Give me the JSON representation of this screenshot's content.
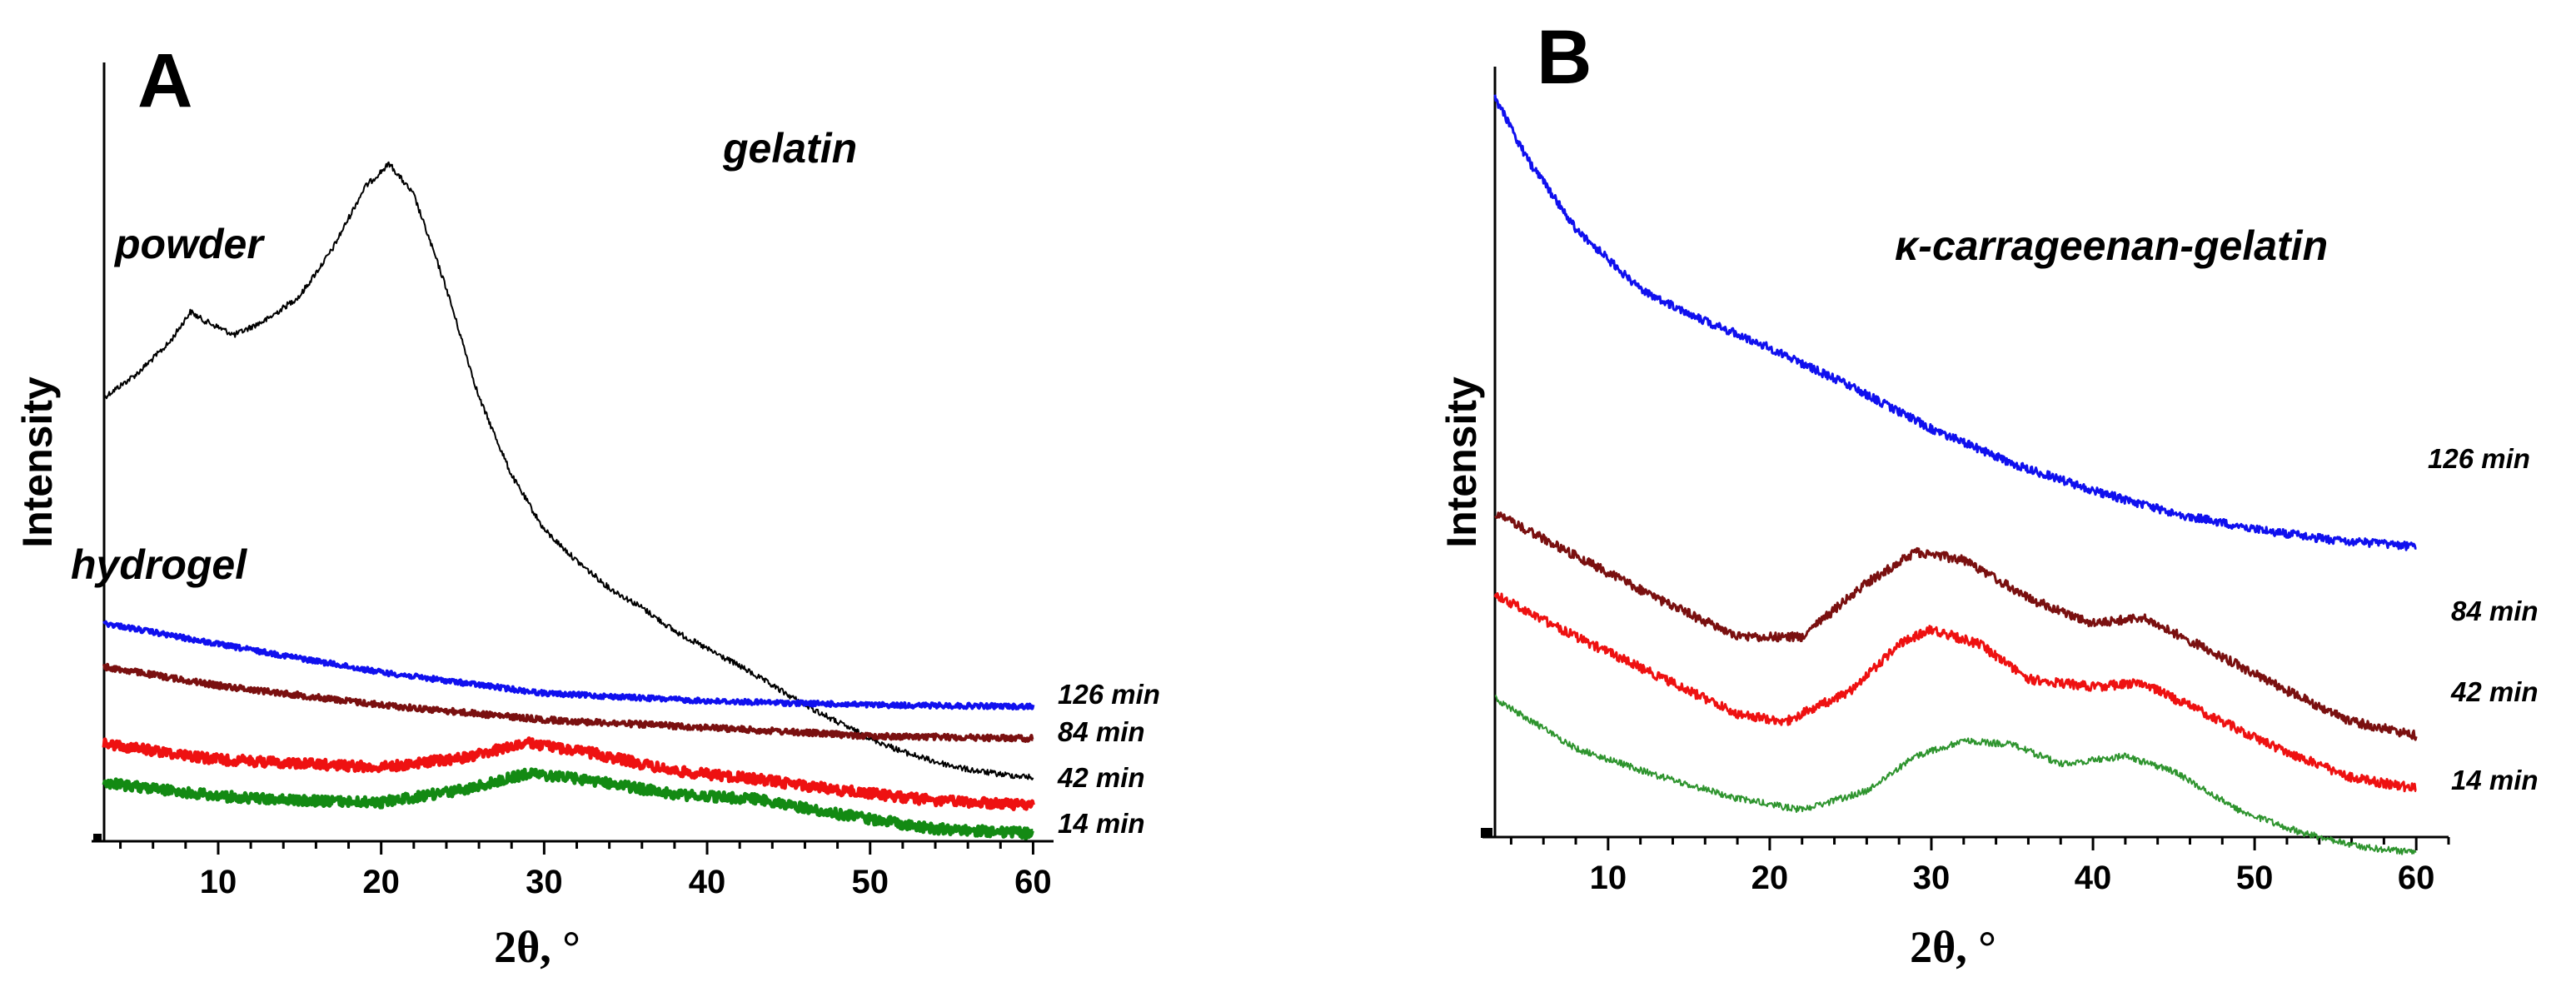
{
  "chart_data": [
    {
      "panel": "A",
      "type": "line",
      "title": "gelatin",
      "xlabel": "2θ, °",
      "ylabel": "Intensity",
      "xlim": [
        3,
        61
      ],
      "ylim": [
        0,
        100
      ],
      "xticks": [
        10,
        20,
        30,
        40,
        50,
        60
      ],
      "annotations": [
        "powder",
        "hydrogel"
      ],
      "series": [
        {
          "name": "powder",
          "label": "",
          "color": "#000000",
          "x": [
            3,
            5,
            7,
            8.3,
            9,
            11,
            13,
            15,
            17,
            19,
            20.5,
            22,
            24,
            26,
            28,
            30,
            32,
            34,
            36,
            38,
            40,
            42,
            44,
            46,
            48,
            50,
            52,
            54,
            56,
            58,
            60
          ],
          "y": [
            57,
            60,
            64,
            68,
            67,
            65,
            67,
            70,
            76,
            84,
            87,
            83,
            71,
            57,
            47,
            40,
            36,
            32.5,
            30,
            27,
            24.7,
            22.5,
            20,
            17.5,
            15.3,
            13.2,
            11.5,
            10.2,
            9.2,
            8.6,
            8.2
          ]
        },
        {
          "name": "126 min",
          "label": "126 min",
          "color": "#1010ee",
          "x": [
            3,
            10,
            20,
            30,
            40,
            50,
            60
          ],
          "y": [
            28,
            25.3,
            21.7,
            19,
            18,
            17.5,
            17.3
          ]
        },
        {
          "name": "84 min",
          "label": "84 min",
          "color": "#7a1010",
          "x": [
            3,
            10,
            20,
            30,
            40,
            50,
            60
          ],
          "y": [
            22.4,
            20,
            17.5,
            15.6,
            14.6,
            13.5,
            13.2
          ]
        },
        {
          "name": "42 min",
          "label": "42 min",
          "color": "#ee1111",
          "x": [
            3,
            10,
            15,
            20,
            25,
            29,
            33,
            38,
            43,
            48,
            54,
            60
          ],
          "y": [
            12.5,
            10.5,
            10,
            9.5,
            10.7,
            12.6,
            11.3,
            9,
            8,
            6.6,
            5.2,
            4.6
          ]
        },
        {
          "name": "14 min",
          "label": "14 min",
          "color": "#138a13",
          "x": [
            3,
            10,
            15,
            20,
            25,
            29,
            33,
            38,
            43,
            48,
            54,
            60
          ],
          "y": [
            7.5,
            5.8,
            5.2,
            5,
            6.6,
            8.7,
            7.8,
            6,
            5.4,
            3.5,
            1.6,
            1
          ]
        }
      ]
    },
    {
      "panel": "B",
      "type": "line",
      "title": "κ-carrageenan-gelatin",
      "xlabel": "2θ, °",
      "ylabel": "Intensity",
      "xlim": [
        3,
        62
      ],
      "ylim": [
        0,
        100
      ],
      "xticks": [
        10,
        20,
        30,
        40,
        50,
        60
      ],
      "annotations": [],
      "series": [
        {
          "name": "126 min",
          "label": "126 min",
          "color": "#1010ee",
          "x": [
            3,
            5,
            8,
            12,
            16,
            20,
            25,
            30,
            35,
            40,
            45,
            50,
            55,
            60
          ],
          "y": [
            96,
            88,
            79,
            71,
            67,
            63.5,
            58.5,
            53,
            48.5,
            45,
            42,
            40,
            38.5,
            37.7
          ]
        },
        {
          "name": "84 min",
          "label": "84 min",
          "color": "#7a1010",
          "x": [
            3,
            8,
            13,
            18,
            22,
            26,
            29,
            32,
            36,
            40,
            43,
            47,
            52,
            56,
            60
          ],
          "y": [
            42,
            36.5,
            31,
            26,
            26,
            33,
            37,
            36,
            31,
            27.7,
            28.5,
            24.5,
            19,
            15,
            13.2
          ]
        },
        {
          "name": "42 min",
          "label": "42 min",
          "color": "#ee1111",
          "x": [
            3,
            8,
            13,
            18,
            21,
            25,
            28,
            30,
            33,
            36,
            40,
            43,
            47,
            52,
            56,
            60
          ],
          "y": [
            31.5,
            26,
            21,
            16,
            15,
            19,
            25,
            27,
            25,
            20.5,
            19.5,
            20,
            16,
            11,
            7.7,
            6.3
          ]
        },
        {
          "name": "14 min",
          "label": "14 min",
          "color": "#2e942e",
          "x": [
            3,
            8,
            13,
            18,
            22,
            26,
            29,
            32,
            35,
            38,
            42,
            45,
            49,
            53,
            57,
            60
          ],
          "y": [
            18,
            11.5,
            8,
            5,
            3.5,
            6,
            10.5,
            12.5,
            12,
            9.5,
            10.5,
            8.5,
            3.5,
            0.5,
            -1.4,
            -2
          ]
        }
      ]
    }
  ]
}
